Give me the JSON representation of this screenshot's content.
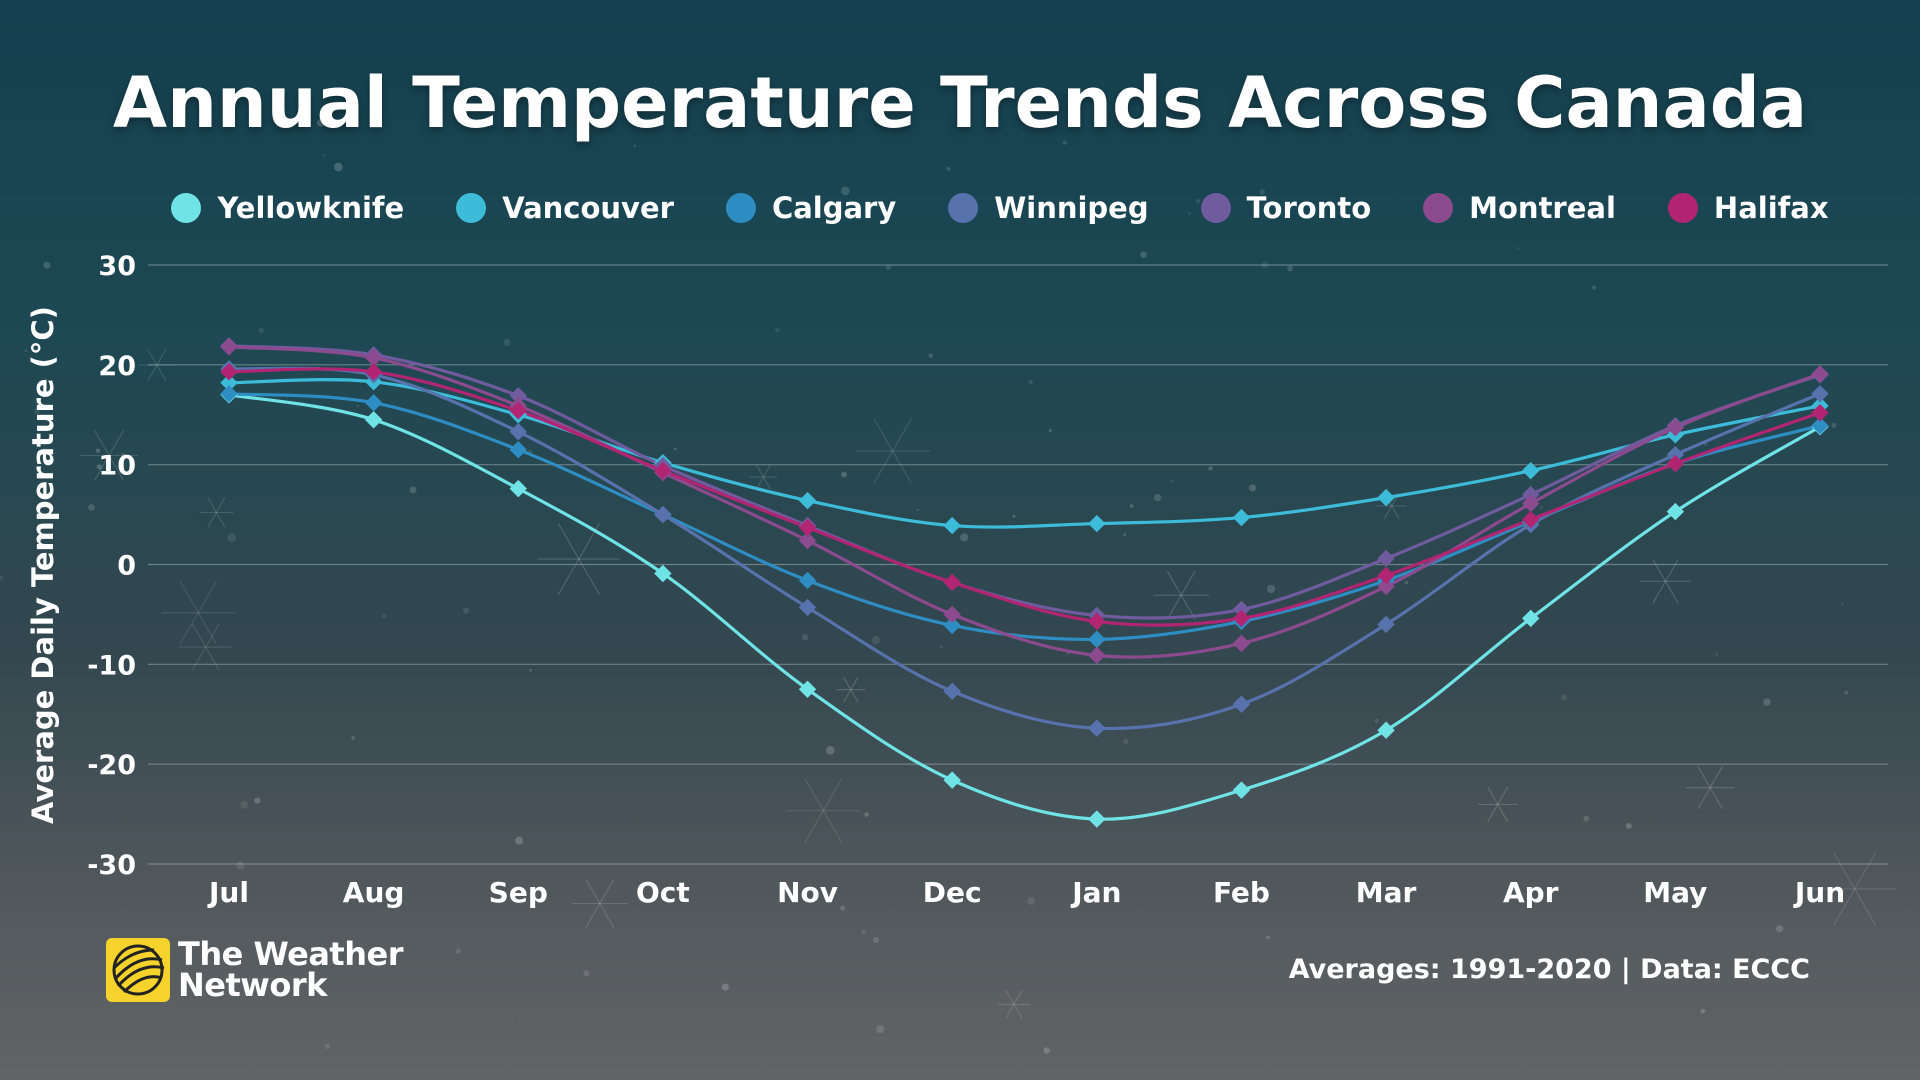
{
  "title": "Annual Temperature Trends Across Canada",
  "footer": {
    "logo_line1": "The Weather",
    "logo_line2": "Network",
    "source": "Averages: 1991-2020 | Data: ECCC"
  },
  "colors": {
    "background_top": "#14404f",
    "background_bottom": "#616466",
    "gridline": "#9fb0b4",
    "logo_yellow": "#f6d32c"
  },
  "chart_data": {
    "type": "line",
    "title": "Annual Temperature Trends Across Canada",
    "ylabel": "Average Daily Temperature (°C)",
    "xlabel": "",
    "categories": [
      "Jul",
      "Aug",
      "Sep",
      "Oct",
      "Nov",
      "Dec",
      "Jan",
      "Feb",
      "Mar",
      "Apr",
      "May",
      "Jun"
    ],
    "ylim": [
      -30,
      30
    ],
    "yticks": [
      30,
      20,
      10,
      0,
      -10,
      -20,
      -30
    ],
    "grid": true,
    "legend_position": "top",
    "smooth": true,
    "series": [
      {
        "name": "Yellowknife",
        "color": "#6fe3e6",
        "values": [
          17.0,
          14.5,
          7.6,
          -0.9,
          -12.5,
          -21.6,
          -25.5,
          -22.6,
          -16.6,
          -5.4,
          5.3,
          13.8
        ]
      },
      {
        "name": "Vancouver",
        "color": "#3dbcd9",
        "values": [
          18.2,
          18.3,
          15.0,
          10.2,
          6.4,
          3.9,
          4.1,
          4.7,
          6.7,
          9.4,
          13.0,
          15.9
        ]
      },
      {
        "name": "Calgary",
        "color": "#2e8dc2",
        "values": [
          17.1,
          16.2,
          11.5,
          5.0,
          -1.6,
          -6.1,
          -7.5,
          -5.7,
          -1.6,
          4.3,
          10.1,
          13.9
        ]
      },
      {
        "name": "Winnipeg",
        "color": "#5872ad",
        "values": [
          19.6,
          19.0,
          13.3,
          5.0,
          -4.3,
          -12.7,
          -16.4,
          -14.0,
          -6.0,
          4.0,
          11.0,
          17.1
        ]
      },
      {
        "name": "Toronto",
        "color": "#6f5b9e",
        "values": [
          21.9,
          21.0,
          16.9,
          9.9,
          3.9,
          -1.8,
          -5.1,
          -4.5,
          0.6,
          7.0,
          13.9,
          19.0
        ]
      },
      {
        "name": "Montreal",
        "color": "#8c4a8f",
        "values": [
          21.8,
          20.7,
          15.9,
          9.2,
          2.4,
          -5.0,
          -9.1,
          -7.9,
          -2.2,
          6.1,
          13.7,
          19.1
        ]
      },
      {
        "name": "Halifax",
        "color": "#b12573",
        "values": [
          19.3,
          19.3,
          15.4,
          9.4,
          3.7,
          -1.8,
          -5.7,
          -5.4,
          -1.1,
          4.5,
          10.1,
          15.2
        ]
      }
    ]
  }
}
